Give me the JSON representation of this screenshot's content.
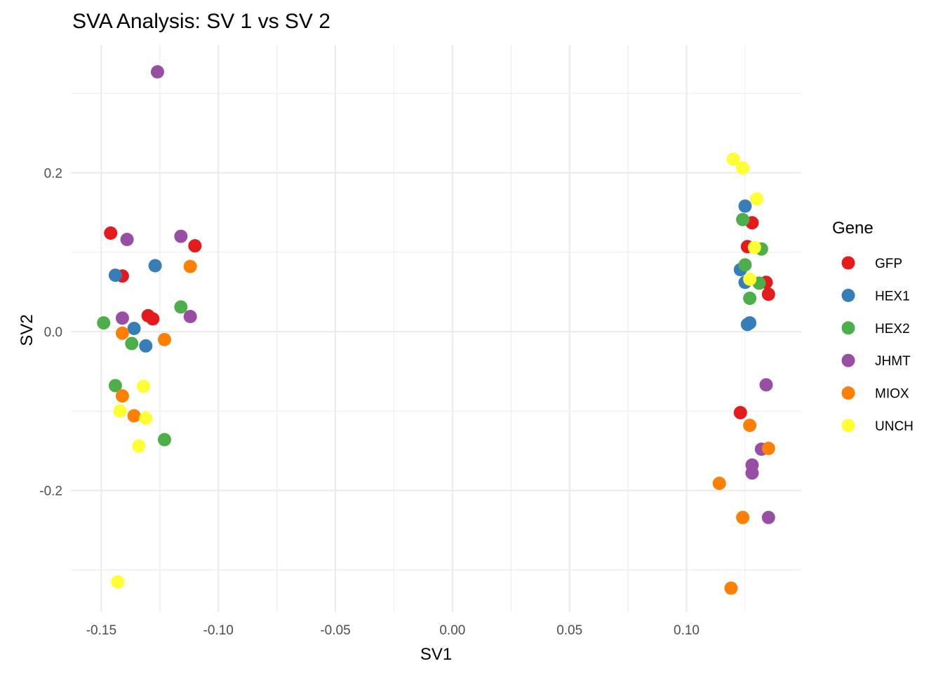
{
  "chart_data": {
    "type": "scatter",
    "title": "SVA Analysis: SV 1  vs SV 2",
    "xlabel": "SV1",
    "ylabel": "SV2",
    "xlim": [
      -0.163,
      0.149
    ],
    "ylim": [
      -0.353,
      0.361
    ],
    "xticks": [
      -0.15,
      -0.1,
      -0.05,
      0.0,
      0.05,
      0.1
    ],
    "xtick_labels": [
      "-0.15",
      "-0.10",
      "-0.05",
      "0.00",
      "0.05",
      "0.10"
    ],
    "xminor": [
      -0.125,
      -0.075,
      -0.025,
      0.025,
      0.075,
      0.125
    ],
    "yticks": [
      -0.2,
      0.0,
      0.2
    ],
    "ytick_labels": [
      "-0.2",
      "0.0",
      "0.2"
    ],
    "yminor": [
      -0.3,
      -0.1,
      0.1,
      0.3
    ],
    "grid": true,
    "legend_title": "Gene",
    "legend_position": "right",
    "series": [
      {
        "name": "GFP",
        "color": "#E41A1C",
        "points": [
          [
            -0.146,
            0.124
          ],
          [
            -0.141,
            0.07
          ],
          [
            -0.13,
            0.02
          ],
          [
            -0.128,
            0.016
          ],
          [
            -0.11,
            0.108
          ],
          [
            0.123,
            -0.102
          ],
          [
            0.126,
            0.107
          ],
          [
            0.128,
            0.137
          ],
          [
            0.134,
            0.062
          ],
          [
            0.135,
            0.047
          ]
        ]
      },
      {
        "name": "HEX1",
        "color": "#377EB8",
        "points": [
          [
            -0.144,
            0.071
          ],
          [
            -0.136,
            0.004
          ],
          [
            -0.131,
            -0.018
          ],
          [
            -0.127,
            0.083
          ],
          [
            0.123,
            0.078
          ],
          [
            0.125,
            0.062
          ],
          [
            0.125,
            0.158
          ],
          [
            0.126,
            0.009
          ],
          [
            0.127,
            0.011
          ]
        ]
      },
      {
        "name": "HEX2",
        "color": "#4DAF4A",
        "points": [
          [
            -0.149,
            0.011
          ],
          [
            -0.144,
            -0.068
          ],
          [
            -0.137,
            -0.015
          ],
          [
            -0.123,
            -0.136
          ],
          [
            -0.116,
            0.031
          ],
          [
            0.124,
            0.141
          ],
          [
            0.125,
            0.084
          ],
          [
            0.127,
            0.042
          ],
          [
            0.131,
            0.061
          ],
          [
            0.132,
            0.104
          ]
        ]
      },
      {
        "name": "JHMT",
        "color": "#984EA3",
        "points": [
          [
            -0.141,
            0.017
          ],
          [
            -0.139,
            0.116
          ],
          [
            -0.126,
            0.327
          ],
          [
            -0.116,
            0.12
          ],
          [
            -0.112,
            0.019
          ],
          [
            0.128,
            -0.178
          ],
          [
            0.128,
            -0.168
          ],
          [
            0.132,
            -0.148
          ],
          [
            0.134,
            -0.067
          ],
          [
            0.135,
            -0.234
          ]
        ]
      },
      {
        "name": "MIOX",
        "color": "#FF7F00",
        "points": [
          [
            -0.141,
            -0.002
          ],
          [
            -0.141,
            -0.081
          ],
          [
            -0.136,
            -0.106
          ],
          [
            -0.123,
            -0.01
          ],
          [
            -0.112,
            0.082
          ],
          [
            0.114,
            -0.191
          ],
          [
            0.119,
            -0.323
          ],
          [
            0.124,
            -0.234
          ],
          [
            0.127,
            -0.118
          ],
          [
            0.135,
            -0.147
          ]
        ]
      },
      {
        "name": "UNCH",
        "color": "#FFFF33",
        "points": [
          [
            -0.143,
            -0.315
          ],
          [
            -0.142,
            -0.1
          ],
          [
            -0.134,
            -0.144
          ],
          [
            -0.132,
            -0.069
          ],
          [
            -0.131,
            -0.109
          ],
          [
            0.12,
            0.217
          ],
          [
            0.124,
            0.206
          ],
          [
            0.127,
            0.066
          ],
          [
            0.129,
            0.106
          ],
          [
            0.13,
            0.167
          ]
        ]
      }
    ]
  }
}
